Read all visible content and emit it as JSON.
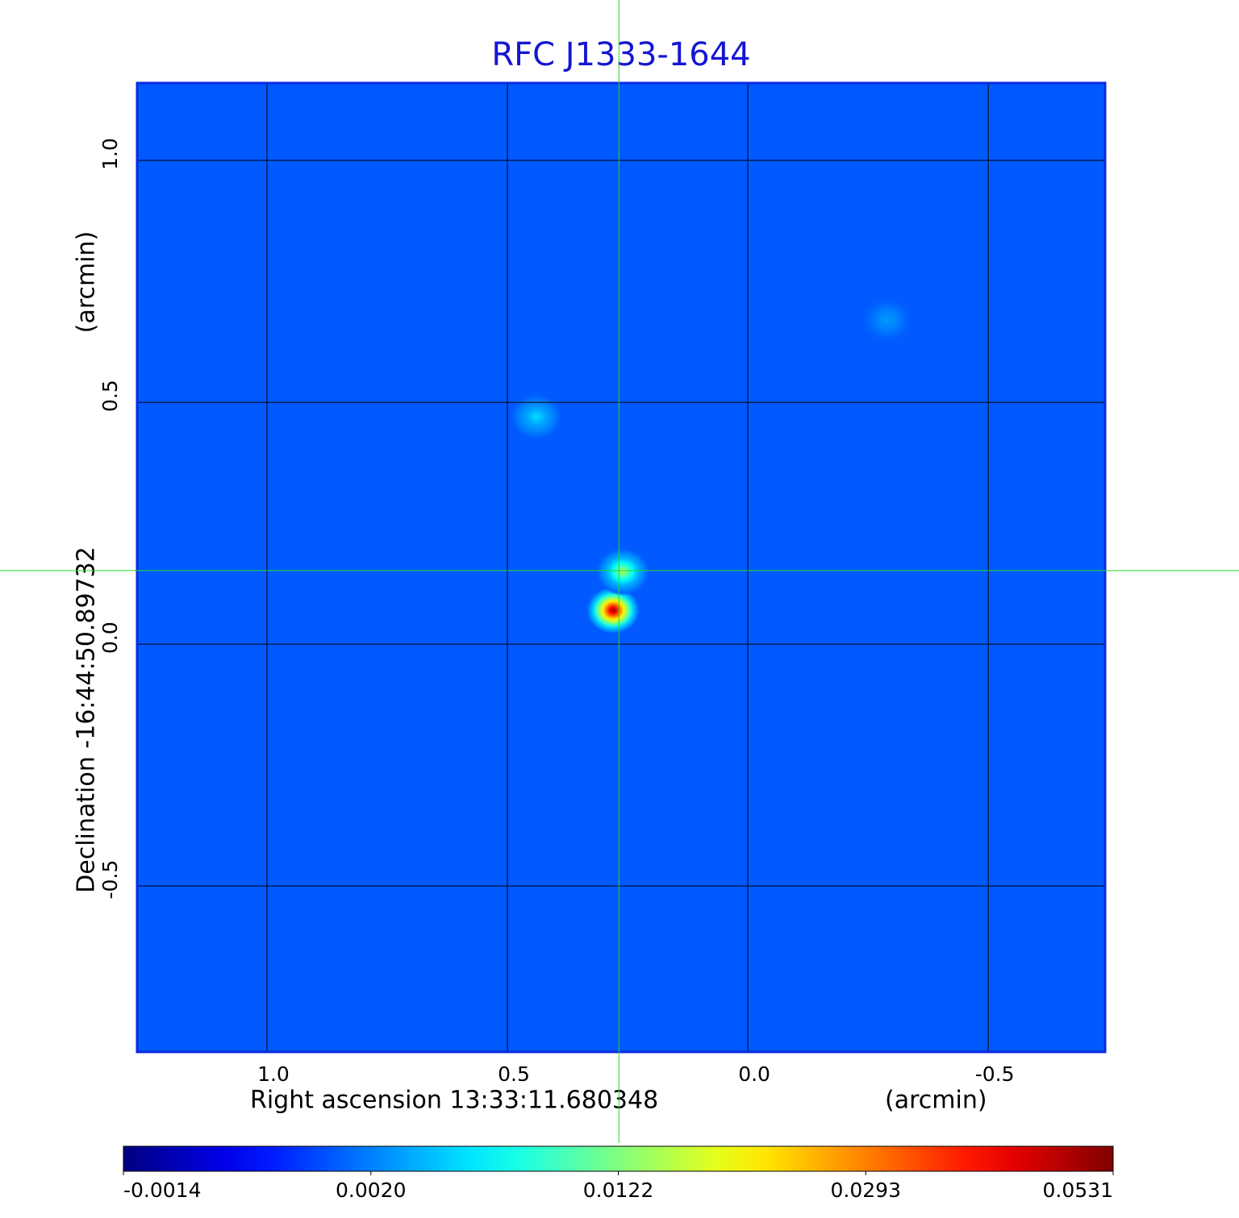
{
  "chart_data": {
    "type": "image",
    "title": "RFC J1333-1644",
    "xlabel": "Right ascension  13:33:11.680348",
    "xunit": "(arcmin)",
    "ylabel": "Declination  -16:44:50.89732",
    "yunit": "(arcmin)",
    "xlim": [
      1.27,
      -0.743
    ],
    "ylim": [
      -0.843,
      1.16
    ],
    "xticks": [
      {
        "value": 1,
        "label": "1.0"
      },
      {
        "value": 0.5,
        "label": "0.5"
      },
      {
        "value": 0,
        "label": "0.0"
      },
      {
        "value": -0.5,
        "label": "-0.5"
      }
    ],
    "yticks": [
      {
        "value": -0.5,
        "label": "-0.5"
      },
      {
        "value": 0,
        "label": "0.0"
      },
      {
        "value": 0.5,
        "label": "0.5"
      },
      {
        "value": 1,
        "label": "1.0"
      }
    ],
    "grid": true,
    "colormap": "jet",
    "colorbar_ticks": [
      -0.0014,
      {
        "value": 0.002,
        "label": "0.0020"
      },
      0.0122,
      0.0293,
      0.0531
    ],
    "background": 0.0015,
    "sources": {
      "x": [
        0.28,
        0.26,
        0.44,
        -0.29
      ],
      "y": [
        0.07,
        0.15,
        0.47,
        0.67
      ],
      "values": [
        0.0531,
        0.015,
        0.006,
        0.003
      ]
    },
    "crosshair": {
      "x": 0.268,
      "y": 0.152
    }
  }
}
